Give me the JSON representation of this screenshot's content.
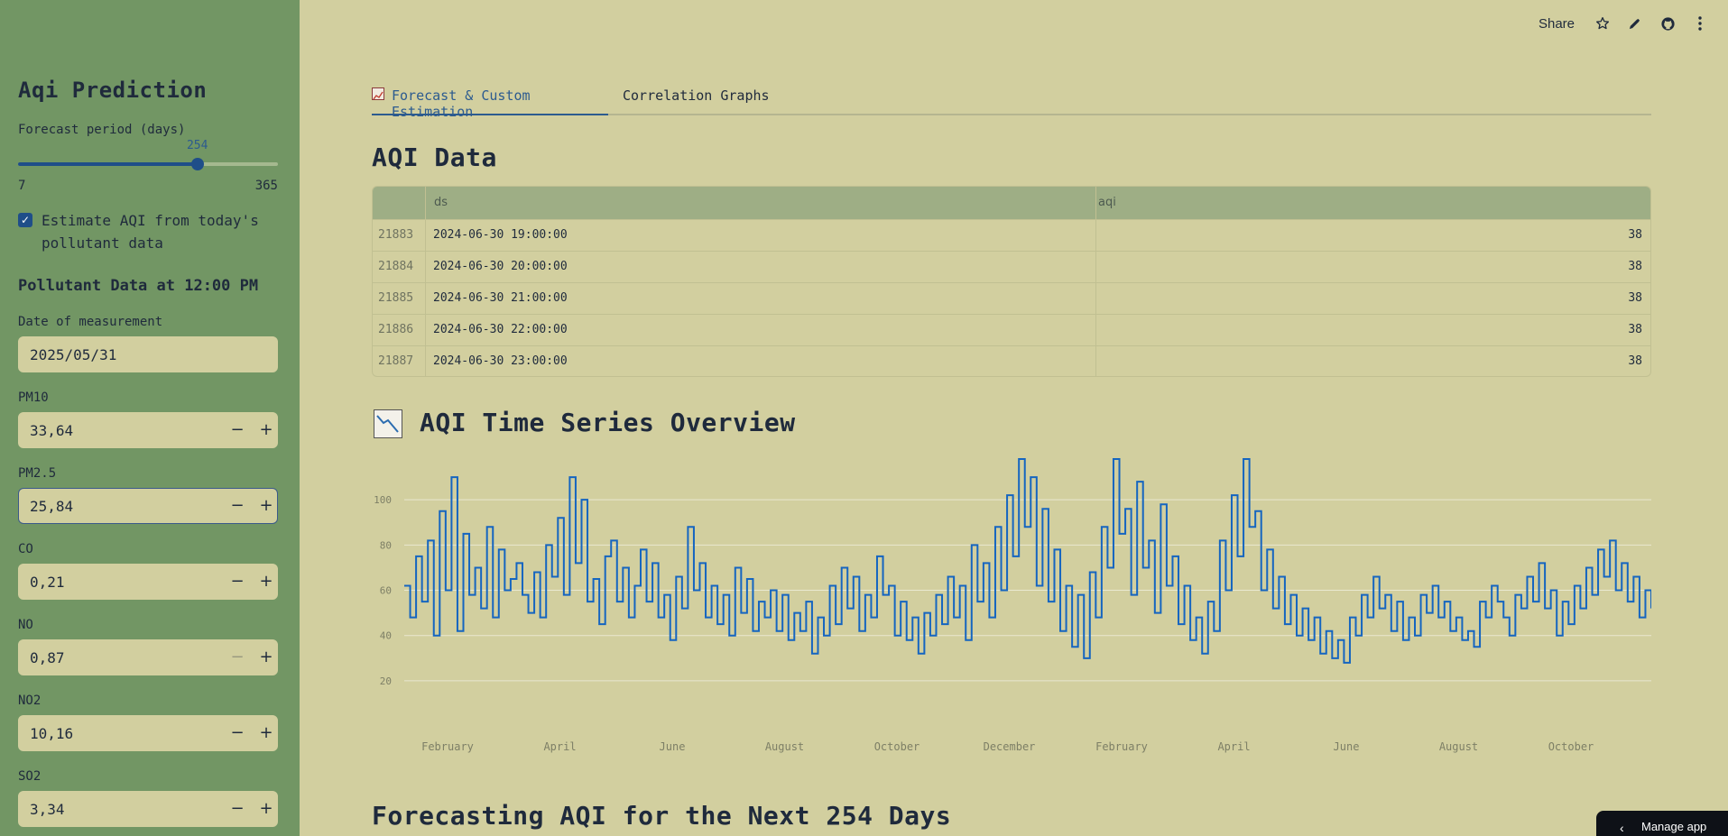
{
  "sidebar": {
    "title": "Aqi Prediction",
    "slider": {
      "label": "Forecast period (days)",
      "value": 254,
      "min": 7,
      "max": 365,
      "min_label": "7",
      "max_label": "365",
      "value_label": "254"
    },
    "checkbox": {
      "label": "Estimate AQI from today's pollutant data",
      "checked": true
    },
    "subheader": "Pollutant Data at 12:00 PM",
    "date": {
      "label": "Date of measurement",
      "value": "2025/05/31"
    },
    "inputs": [
      {
        "label": "PM10",
        "value": "33,64"
      },
      {
        "label": "PM2.5",
        "value": "25,84"
      },
      {
        "label": "CO",
        "value": "0,21"
      },
      {
        "label": "NO",
        "value": "0,87"
      },
      {
        "label": "NO2",
        "value": "10,16"
      },
      {
        "label": "SO2",
        "value": "3,34"
      }
    ],
    "minus": "−",
    "plus": "+"
  },
  "toolbar": {
    "share": "Share"
  },
  "tabs": [
    {
      "label": "Forecast & Custom Estimation"
    },
    {
      "label": "Correlation Graphs"
    }
  ],
  "headings": {
    "aqi_data": "AQI Data",
    "overview": "AQI Time Series Overview",
    "forecast": "Forecasting AQI for the Next 254 Days"
  },
  "table": {
    "columns": [
      "",
      "ds",
      "aqi"
    ],
    "rows": [
      {
        "index": "21883",
        "ds": "2024-06-30 19:00:00",
        "aqi": "38"
      },
      {
        "index": "21884",
        "ds": "2024-06-30 20:00:00",
        "aqi": "38"
      },
      {
        "index": "21885",
        "ds": "2024-06-30 21:00:00",
        "aqi": "38"
      },
      {
        "index": "21886",
        "ds": "2024-06-30 22:00:00",
        "aqi": "38"
      },
      {
        "index": "21887",
        "ds": "2024-06-30 23:00:00",
        "aqi": "38"
      }
    ]
  },
  "chart_data": {
    "type": "line",
    "title": "",
    "xlabel": "",
    "ylabel": "",
    "yticks": [
      20,
      40,
      60,
      80,
      100
    ],
    "ylim": [
      10,
      120
    ],
    "xticks": [
      "February",
      "April",
      "June",
      "August",
      "October",
      "December",
      "February",
      "April",
      "June",
      "August",
      "October"
    ],
    "color": "#1565c0",
    "grid": true,
    "series": [
      {
        "values": [
          62,
          48,
          75,
          55,
          82,
          40,
          95,
          60,
          110,
          42,
          85,
          58,
          70,
          52,
          88,
          48,
          78,
          60,
          65,
          72,
          58,
          50,
          68,
          48,
          80,
          66,
          92,
          58,
          110,
          72,
          100,
          55,
          65,
          45,
          75,
          82,
          55,
          70,
          48,
          62,
          78,
          55,
          72,
          48,
          58,
          38,
          66,
          52,
          88,
          60,
          72,
          48,
          62,
          45,
          58,
          40,
          70,
          50,
          65,
          42,
          55,
          48,
          60,
          42,
          58,
          38,
          50,
          42,
          55,
          32,
          48,
          40,
          62,
          45,
          70,
          52,
          66,
          42,
          58,
          48,
          75,
          58,
          62,
          40,
          55,
          38,
          48,
          32,
          50,
          40,
          58,
          45,
          66,
          48,
          62,
          38,
          80,
          55,
          72,
          48,
          88,
          60,
          102,
          75,
          118,
          88,
          110,
          62,
          96,
          55,
          78,
          42,
          62,
          35,
          58,
          30,
          68,
          48,
          88,
          70,
          118,
          85,
          96,
          58,
          108,
          70,
          82,
          50,
          98,
          62,
          75,
          45,
          62,
          38,
          48,
          32,
          55,
          42,
          82,
          60,
          102,
          75,
          118,
          88,
          95,
          60,
          78,
          52,
          66,
          45,
          58,
          40,
          52,
          38,
          48,
          32,
          42,
          30,
          38,
          28,
          48,
          40,
          58,
          48,
          66,
          52,
          58,
          42,
          55,
          38,
          48,
          40,
          58,
          50,
          62,
          48,
          55,
          42,
          48,
          38,
          42,
          35,
          55,
          48,
          62,
          55,
          48,
          40,
          58,
          52,
          66,
          55,
          72,
          52,
          60,
          40,
          55,
          45,
          62,
          52,
          70,
          58,
          78,
          66,
          82,
          60,
          72,
          55,
          66,
          48,
          60,
          52
        ]
      }
    ]
  }
}
